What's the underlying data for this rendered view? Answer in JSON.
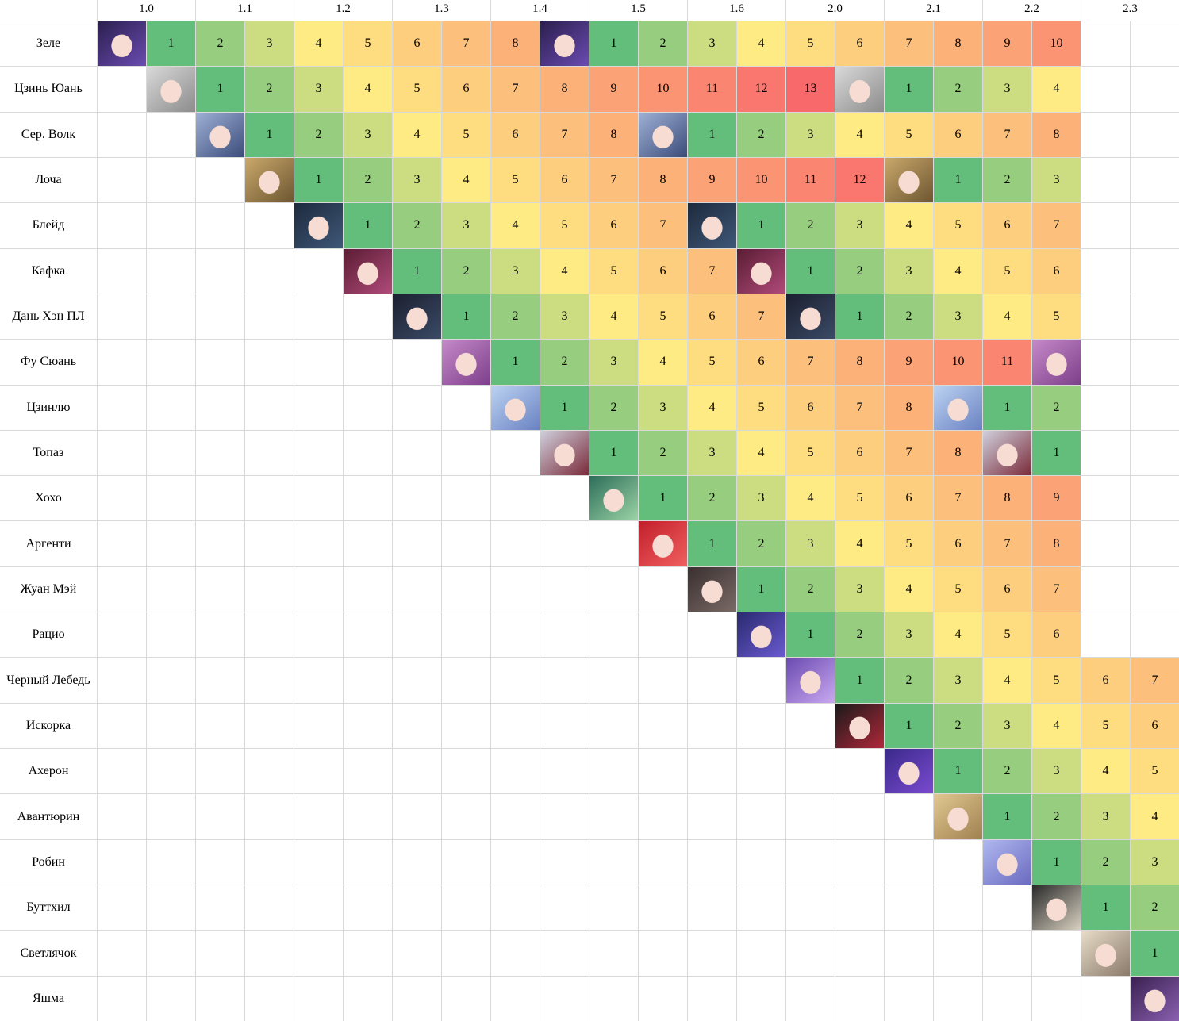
{
  "table": {
    "columns": [
      "1.0",
      "1.1",
      "1.2",
      "1.3",
      "1.4",
      "1.5",
      "1.6",
      "2.0",
      "2.1",
      "2.2",
      "2.3"
    ],
    "color_scale": [
      {
        "value": 1,
        "color": "#63be7b"
      },
      {
        "value": 4,
        "color": "#ffeb84"
      },
      {
        "value": 13,
        "color": "#f8696b"
      }
    ],
    "rows": [
      {
        "name": "Зеле",
        "portraits": [
          0,
          9
        ],
        "cells": [
          null,
          1,
          2,
          3,
          4,
          5,
          6,
          7,
          8,
          null,
          1,
          2,
          3,
          4,
          5,
          6,
          7,
          8,
          9,
          10,
          null,
          null
        ]
      },
      {
        "name": "Цзинь Юань",
        "portraits": [
          1,
          15
        ],
        "cells": [
          null,
          null,
          1,
          2,
          3,
          4,
          5,
          6,
          7,
          8,
          9,
          10,
          11,
          12,
          13,
          null,
          1,
          2,
          3,
          4,
          null,
          null
        ]
      },
      {
        "name": "Сер. Волк",
        "portraits": [
          2,
          11
        ],
        "cells": [
          null,
          null,
          null,
          1,
          2,
          3,
          4,
          5,
          6,
          7,
          8,
          null,
          1,
          2,
          3,
          4,
          5,
          6,
          7,
          8,
          null,
          null
        ]
      },
      {
        "name": "Лоча",
        "portraits": [
          3,
          16
        ],
        "cells": [
          null,
          null,
          null,
          null,
          1,
          2,
          3,
          4,
          5,
          6,
          7,
          8,
          9,
          10,
          11,
          12,
          null,
          1,
          2,
          3,
          null,
          null
        ]
      },
      {
        "name": "Блейд",
        "portraits": [
          4,
          12
        ],
        "cells": [
          null,
          null,
          null,
          null,
          null,
          1,
          2,
          3,
          4,
          5,
          6,
          7,
          null,
          1,
          2,
          3,
          4,
          5,
          6,
          7,
          null,
          null
        ]
      },
      {
        "name": "Кафка",
        "portraits": [
          5,
          13
        ],
        "cells": [
          null,
          null,
          null,
          null,
          null,
          null,
          1,
          2,
          3,
          4,
          5,
          6,
          7,
          null,
          1,
          2,
          3,
          4,
          5,
          6,
          null,
          null
        ]
      },
      {
        "name": "Дань Хэн ПЛ",
        "portraits": [
          6,
          14
        ],
        "cells": [
          null,
          null,
          null,
          null,
          null,
          null,
          null,
          1,
          2,
          3,
          4,
          5,
          6,
          7,
          null,
          1,
          2,
          3,
          4,
          5,
          null,
          null
        ]
      },
      {
        "name": "Фу Сюань",
        "portraits": [
          7,
          19
        ],
        "cells": [
          null,
          null,
          null,
          null,
          null,
          null,
          null,
          null,
          1,
          2,
          3,
          4,
          5,
          6,
          7,
          8,
          9,
          10,
          11,
          null,
          null,
          null
        ]
      },
      {
        "name": "Цзинлю",
        "portraits": [
          8,
          17
        ],
        "cells": [
          null,
          null,
          null,
          null,
          null,
          null,
          null,
          null,
          null,
          1,
          2,
          3,
          4,
          5,
          6,
          7,
          8,
          null,
          1,
          2,
          null,
          null
        ]
      },
      {
        "name": "Топаз",
        "portraits": [
          9,
          18
        ],
        "cells": [
          null,
          null,
          null,
          null,
          null,
          null,
          null,
          null,
          null,
          null,
          1,
          2,
          3,
          4,
          5,
          6,
          7,
          8,
          null,
          1,
          null,
          null
        ]
      },
      {
        "name": "Хохо",
        "portraits": [
          10
        ],
        "cells": [
          null,
          null,
          null,
          null,
          null,
          null,
          null,
          null,
          null,
          null,
          null,
          1,
          2,
          3,
          4,
          5,
          6,
          7,
          8,
          9,
          null,
          null
        ]
      },
      {
        "name": "Аргенти",
        "portraits": [
          11
        ],
        "cells": [
          null,
          null,
          null,
          null,
          null,
          null,
          null,
          null,
          null,
          null,
          null,
          null,
          1,
          2,
          3,
          4,
          5,
          6,
          7,
          8,
          null,
          null
        ]
      },
      {
        "name": "Жуан Мэй",
        "portraits": [
          12
        ],
        "cells": [
          null,
          null,
          null,
          null,
          null,
          null,
          null,
          null,
          null,
          null,
          null,
          null,
          null,
          1,
          2,
          3,
          4,
          5,
          6,
          7,
          null,
          null
        ]
      },
      {
        "name": "Рацио",
        "portraits": [
          13
        ],
        "cells": [
          null,
          null,
          null,
          null,
          null,
          null,
          null,
          null,
          null,
          null,
          null,
          null,
          null,
          null,
          1,
          2,
          3,
          4,
          5,
          6,
          null,
          null
        ]
      },
      {
        "name": "Черный Лебедь",
        "portraits": [
          14
        ],
        "cells": [
          null,
          null,
          null,
          null,
          null,
          null,
          null,
          null,
          null,
          null,
          null,
          null,
          null,
          null,
          null,
          1,
          2,
          3,
          4,
          5,
          6,
          7
        ]
      },
      {
        "name": "Искорка",
        "portraits": [
          15
        ],
        "cells": [
          null,
          null,
          null,
          null,
          null,
          null,
          null,
          null,
          null,
          null,
          null,
          null,
          null,
          null,
          null,
          null,
          1,
          2,
          3,
          4,
          5,
          6
        ]
      },
      {
        "name": "Ахерон",
        "portraits": [
          16
        ],
        "cells": [
          null,
          null,
          null,
          null,
          null,
          null,
          null,
          null,
          null,
          null,
          null,
          null,
          null,
          null,
          null,
          null,
          null,
          1,
          2,
          3,
          4,
          5
        ]
      },
      {
        "name": "Авантюрин",
        "portraits": [
          17
        ],
        "cells": [
          null,
          null,
          null,
          null,
          null,
          null,
          null,
          null,
          null,
          null,
          null,
          null,
          null,
          null,
          null,
          null,
          null,
          null,
          1,
          2,
          3,
          4
        ]
      },
      {
        "name": "Робин",
        "portraits": [
          18
        ],
        "cells": [
          null,
          null,
          null,
          null,
          null,
          null,
          null,
          null,
          null,
          null,
          null,
          null,
          null,
          null,
          null,
          null,
          null,
          null,
          null,
          1,
          2,
          3
        ]
      },
      {
        "name": "Буттхил",
        "portraits": [
          19
        ],
        "cells": [
          null,
          null,
          null,
          null,
          null,
          null,
          null,
          null,
          null,
          null,
          null,
          null,
          null,
          null,
          null,
          null,
          null,
          null,
          null,
          null,
          1,
          2
        ]
      },
      {
        "name": "Светлячок",
        "portraits": [
          20
        ],
        "cells": [
          null,
          null,
          null,
          null,
          null,
          null,
          null,
          null,
          null,
          null,
          null,
          null,
          null,
          null,
          null,
          null,
          null,
          null,
          null,
          null,
          null,
          1
        ]
      },
      {
        "name": "Яшма",
        "portraits": [
          21
        ],
        "cells": [
          null,
          null,
          null,
          null,
          null,
          null,
          null,
          null,
          null,
          null,
          null,
          null,
          null,
          null,
          null,
          null,
          null,
          null,
          null,
          null,
          null,
          null
        ]
      }
    ]
  }
}
